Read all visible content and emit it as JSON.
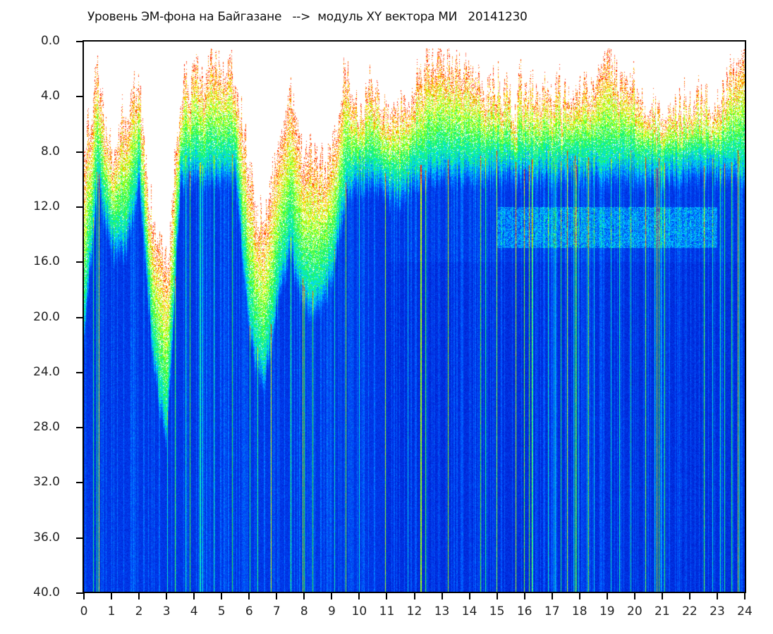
{
  "chart_data": {
    "type": "heatmap",
    "title": "Уровень ЭМ-фона на Байгазане   -->  модуль XY вектора МИ   20141230",
    "xlabel": "",
    "ylabel": "",
    "xlim": [
      0,
      24
    ],
    "ylim": [
      0,
      40
    ],
    "y_inverted": true,
    "x_ticks": [
      "0",
      "1",
      "2",
      "3",
      "4",
      "5",
      "6",
      "7",
      "8",
      "9",
      "10",
      "11",
      "12",
      "13",
      "14",
      "15",
      "16",
      "17",
      "18",
      "19",
      "20",
      "21",
      "22",
      "23",
      "24"
    ],
    "y_ticks": [
      "0.0",
      "4.0",
      "8.0",
      "12.0",
      "16.0",
      "20.0",
      "24.0",
      "28.0",
      "32.0",
      "36.0",
      "40.0"
    ],
    "colorscale": [
      "#0018c8",
      "#0050ff",
      "#00e0ff",
      "#20ff40",
      "#ffff00",
      "#ff2000"
    ],
    "profile_hours": [
      0,
      0.5,
      1,
      1.5,
      2,
      2.5,
      3,
      3.5,
      4,
      4.5,
      5,
      5.5,
      6,
      6.5,
      7,
      7.5,
      8,
      8.5,
      9,
      9.5,
      10,
      10.5,
      11,
      11.5,
      12,
      12.5,
      13,
      13.5,
      14,
      14.5,
      15,
      15.5,
      16,
      16.5,
      17,
      17.5,
      18,
      18.5,
      19,
      19.5,
      20,
      20.5,
      21,
      21.5,
      22,
      22.5,
      23,
      23.5,
      24
    ],
    "signal_onset_level": [
      8,
      2,
      9,
      6,
      2.5,
      14,
      16,
      4,
      2.5,
      2,
      2,
      2,
      10,
      13,
      8,
      3,
      8,
      9,
      8,
      2,
      6,
      3,
      5,
      5,
      4,
      1.5,
      1.5,
      1.5,
      2,
      3,
      4,
      4,
      3.5,
      4,
      3.5,
      4,
      3,
      3.5,
      1,
      3,
      4,
      5,
      5,
      5,
      5,
      5,
      5,
      2,
      2
    ],
    "blue_background_from_level": [
      20,
      9,
      14,
      14,
      9,
      22,
      28,
      9,
      8.5,
      8.5,
      8.5,
      8.5,
      20,
      24,
      18,
      14,
      18,
      18,
      16,
      10,
      9,
      9,
      10,
      10,
      9,
      8.5,
      8.5,
      8.5,
      8.5,
      8.5,
      8.5,
      8.5,
      8.5,
      8.5,
      8.5,
      8.5,
      8.5,
      8.5,
      8.5,
      8.5,
      8.5,
      8.5,
      8.5,
      8.5,
      8.5,
      8.5,
      8.5,
      8.5,
      8.5
    ],
    "secondary_cyan_band": {
      "from_hour": 15,
      "to_hour": 23,
      "level_range": [
        12,
        15
      ]
    }
  }
}
